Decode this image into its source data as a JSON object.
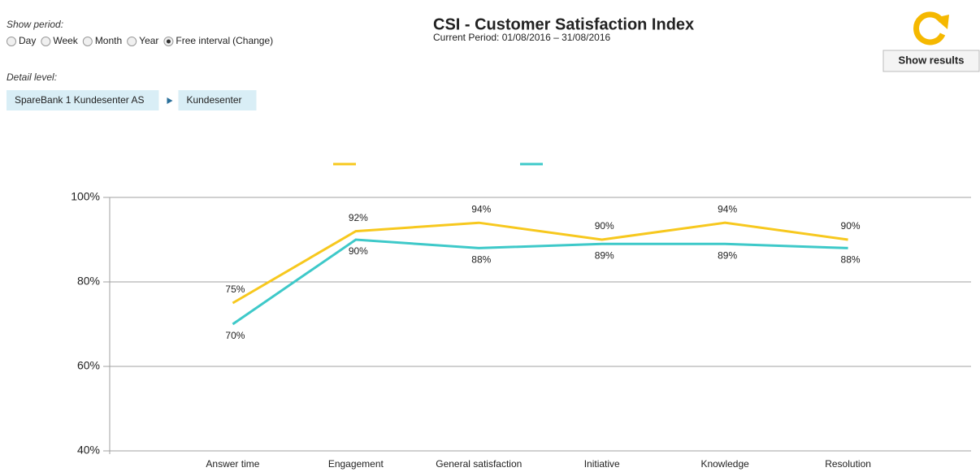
{
  "period": {
    "label": "Show period:",
    "options": [
      "Day",
      "Week",
      "Month",
      "Year",
      "Free interval"
    ],
    "selected": 4,
    "change": "(Change)"
  },
  "detail": {
    "label": "Detail level:",
    "breadcrumb": [
      "SpareBank 1 Kundesenter AS",
      "Kundesenter"
    ]
  },
  "header": {
    "title": "CSI - Customer Satisfaction Index",
    "subtitle": "Current Period: 01/08/2016 – 31/08/2016"
  },
  "button": "Show results",
  "chart_data": {
    "type": "line",
    "categories": [
      "Answer time",
      "Engagement",
      "General satisfaction",
      "Initiative",
      "Knowledge",
      "Resolution"
    ],
    "series": [
      {
        "color": "#f7c81e",
        "values": [
          75,
          92,
          94,
          90,
          94,
          90
        ],
        "value_labels": [
          "75%",
          "92%",
          "94%",
          "90%",
          "94%",
          "90%"
        ]
      },
      {
        "color": "#3ec9c9",
        "values": [
          70,
          90,
          88,
          89,
          89,
          88
        ],
        "value_labels": [
          "70%",
          "90%",
          "88%",
          "89%",
          "89%",
          "88%"
        ]
      }
    ],
    "ylim": [
      40,
      100
    ],
    "yticks": [
      {
        "value": 40,
        "label": "40%"
      },
      {
        "value": 60,
        "label": "60%"
      },
      {
        "value": 80,
        "label": "80%"
      },
      {
        "value": 100,
        "label": "100%"
      }
    ],
    "grid": true
  }
}
